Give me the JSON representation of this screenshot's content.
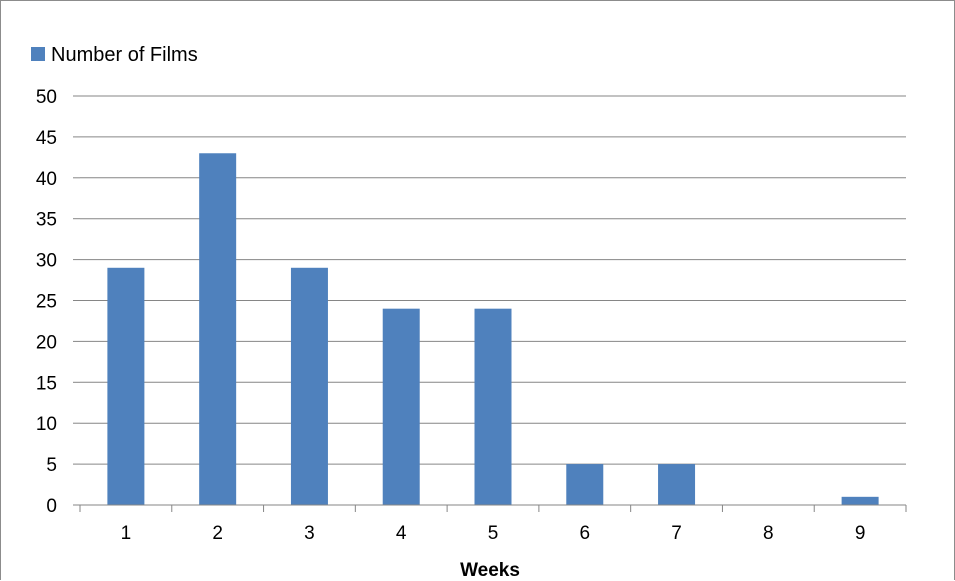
{
  "chart_data": {
    "type": "bar",
    "title": "",
    "xlabel": "Weeks",
    "ylabel": "",
    "categories": [
      "1",
      "2",
      "3",
      "4",
      "5",
      "6",
      "7",
      "8",
      "9"
    ],
    "series": [
      {
        "name": "Number of Films",
        "values": [
          29,
          43,
          29,
          24,
          24,
          5,
          5,
          0,
          1
        ],
        "color": "#4f81bd"
      }
    ],
    "ylim": [
      0,
      50
    ],
    "yticks": [
      0,
      5,
      10,
      15,
      20,
      25,
      30,
      35,
      40,
      45,
      50
    ],
    "grid": true,
    "legend_position": "top-left"
  }
}
